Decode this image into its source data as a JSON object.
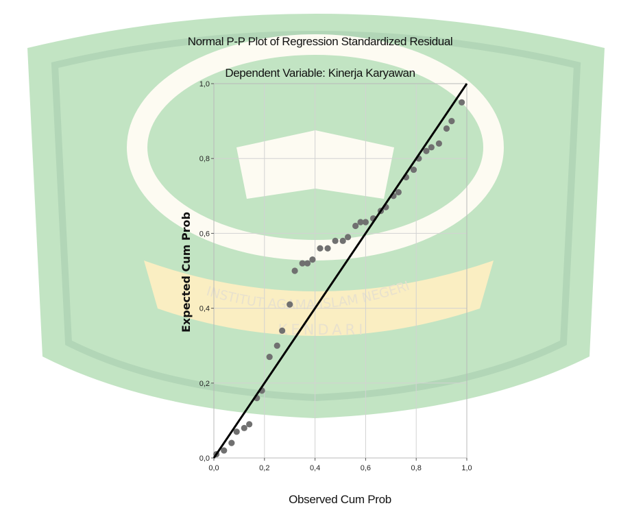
{
  "chart_data": {
    "type": "scatter",
    "title": "Normal P-P Plot of Regression Standardized Residual",
    "subtitle": "Dependent Variable: Kinerja Karyawan",
    "xlabel": "Observed Cum Prob",
    "ylabel": "Expected Cum Prob",
    "xlim": [
      0,
      1
    ],
    "ylim": [
      0,
      1
    ],
    "xticks": [
      "0,0",
      "0,2",
      "0,4",
      "0,6",
      "0,8",
      "1,0"
    ],
    "yticks": [
      "0,0",
      "0,2",
      "0,4",
      "0,6",
      "0,8",
      "1,0"
    ],
    "grid": true,
    "reference_line": {
      "from": [
        0,
        0
      ],
      "to": [
        1,
        1
      ]
    },
    "points": [
      {
        "x": 0.01,
        "y": 0.01
      },
      {
        "x": 0.04,
        "y": 0.02
      },
      {
        "x": 0.07,
        "y": 0.04
      },
      {
        "x": 0.09,
        "y": 0.07
      },
      {
        "x": 0.12,
        "y": 0.08
      },
      {
        "x": 0.14,
        "y": 0.09
      },
      {
        "x": 0.17,
        "y": 0.16
      },
      {
        "x": 0.19,
        "y": 0.18
      },
      {
        "x": 0.22,
        "y": 0.27
      },
      {
        "x": 0.25,
        "y": 0.3
      },
      {
        "x": 0.27,
        "y": 0.34
      },
      {
        "x": 0.3,
        "y": 0.41
      },
      {
        "x": 0.32,
        "y": 0.5
      },
      {
        "x": 0.35,
        "y": 0.52
      },
      {
        "x": 0.37,
        "y": 0.52
      },
      {
        "x": 0.39,
        "y": 0.53
      },
      {
        "x": 0.42,
        "y": 0.56
      },
      {
        "x": 0.45,
        "y": 0.56
      },
      {
        "x": 0.48,
        "y": 0.58
      },
      {
        "x": 0.51,
        "y": 0.58
      },
      {
        "x": 0.53,
        "y": 0.59
      },
      {
        "x": 0.56,
        "y": 0.62
      },
      {
        "x": 0.58,
        "y": 0.63
      },
      {
        "x": 0.6,
        "y": 0.63
      },
      {
        "x": 0.63,
        "y": 0.64
      },
      {
        "x": 0.66,
        "y": 0.66
      },
      {
        "x": 0.68,
        "y": 0.67
      },
      {
        "x": 0.71,
        "y": 0.7
      },
      {
        "x": 0.73,
        "y": 0.71
      },
      {
        "x": 0.76,
        "y": 0.75
      },
      {
        "x": 0.79,
        "y": 0.77
      },
      {
        "x": 0.81,
        "y": 0.8
      },
      {
        "x": 0.84,
        "y": 0.82
      },
      {
        "x": 0.86,
        "y": 0.83
      },
      {
        "x": 0.89,
        "y": 0.84
      },
      {
        "x": 0.92,
        "y": 0.88
      },
      {
        "x": 0.94,
        "y": 0.9
      },
      {
        "x": 0.98,
        "y": 0.95
      }
    ],
    "colors": {
      "points": "#707070",
      "reference_line": "#000000",
      "grid": "#d2d2d2",
      "frame": "#b8b8b8"
    }
  },
  "watermark": {
    "arc_text_top": "INSTITUT AGAMA ISLAM NEGERI",
    "arc_text_bottom": "KENDARI",
    "colors": {
      "green": "#6fbf73",
      "green_dark": "#4a9e55",
      "yellow": "#f5d770",
      "ivory": "#fbf6e2"
    }
  }
}
